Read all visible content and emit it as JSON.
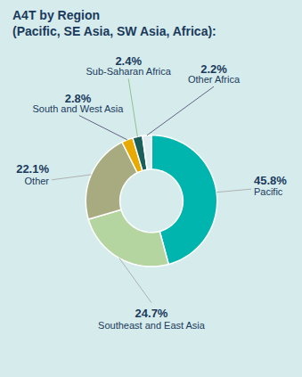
{
  "chart_data": {
    "type": "pie",
    "title": "A4T by Region",
    "subtitle": "(Pacific, SE Asia, SW Asia, Africa):",
    "categories": [
      "Pacific",
      "Southeast and East Asia",
      "Other",
      "South and West Asia",
      "Sub-Saharan Africa",
      "Other Africa"
    ],
    "values": [
      45.8,
      24.7,
      22.1,
      2.8,
      2.4,
      2.2
    ],
    "value_labels": [
      "45.8%",
      "24.7%",
      "22.1%",
      "2.8%",
      "2.4%",
      "2.2%"
    ],
    "colors": [
      "#00b5ad",
      "#b5d5a0",
      "#a8aa80",
      "#e8aa00",
      "#1a5e5a",
      "#ddedf0"
    ],
    "data_labels": true
  }
}
